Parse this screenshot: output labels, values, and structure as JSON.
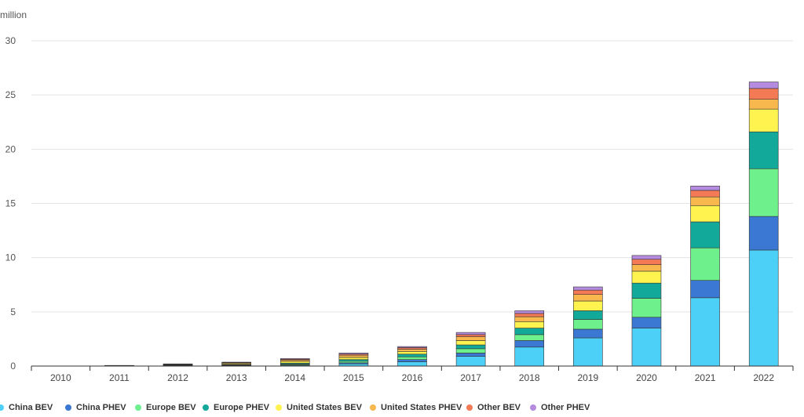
{
  "chart_data": {
    "type": "bar",
    "stacked": true,
    "unit": "million",
    "ylim": [
      0,
      30
    ],
    "yticks": [
      0,
      5,
      10,
      15,
      20,
      25,
      30
    ],
    "grid": true,
    "legend_position": "bottom",
    "categories": [
      "2010",
      "2011",
      "2012",
      "2013",
      "2014",
      "2015",
      "2016",
      "2017",
      "2018",
      "2019",
      "2020",
      "2021",
      "2022"
    ],
    "series": [
      {
        "name": "China BEV",
        "color": "#4dd0f7",
        "values": [
          0.0,
          0.01,
          0.02,
          0.04,
          0.08,
          0.2,
          0.4,
          0.9,
          1.75,
          2.6,
          3.5,
          6.3,
          10.7
        ]
      },
      {
        "name": "China PHEV",
        "color": "#3a78d4",
        "values": [
          0.0,
          0.0,
          0.01,
          0.01,
          0.03,
          0.1,
          0.2,
          0.3,
          0.6,
          0.8,
          1.0,
          1.6,
          3.1
        ]
      },
      {
        "name": "Europe BEV",
        "color": "#6ef08c",
        "values": [
          0.0,
          0.01,
          0.02,
          0.04,
          0.08,
          0.15,
          0.25,
          0.4,
          0.55,
          0.9,
          1.75,
          3.0,
          4.4
        ]
      },
      {
        "name": "Europe PHEV",
        "color": "#12a89a",
        "values": [
          0.0,
          0.0,
          0.02,
          0.04,
          0.08,
          0.15,
          0.25,
          0.35,
          0.6,
          0.8,
          1.4,
          2.4,
          3.4
        ]
      },
      {
        "name": "United States BEV",
        "color": "#fff44f",
        "values": [
          0.0,
          0.01,
          0.04,
          0.08,
          0.15,
          0.2,
          0.25,
          0.4,
          0.6,
          0.9,
          1.1,
          1.5,
          2.1
        ]
      },
      {
        "name": "United States PHEV",
        "color": "#f8b84e",
        "values": [
          0.0,
          0.01,
          0.04,
          0.08,
          0.13,
          0.2,
          0.2,
          0.35,
          0.45,
          0.6,
          0.6,
          0.8,
          0.9
        ]
      },
      {
        "name": "Other BEV",
        "color": "#f47a55",
        "values": [
          0.0,
          0.01,
          0.03,
          0.04,
          0.08,
          0.1,
          0.15,
          0.2,
          0.3,
          0.4,
          0.5,
          0.6,
          1.0
        ]
      },
      {
        "name": "Other PHEV",
        "color": "#b58be0",
        "values": [
          0.0,
          0.01,
          0.02,
          0.03,
          0.06,
          0.1,
          0.1,
          0.2,
          0.25,
          0.3,
          0.35,
          0.4,
          0.6
        ]
      }
    ]
  }
}
